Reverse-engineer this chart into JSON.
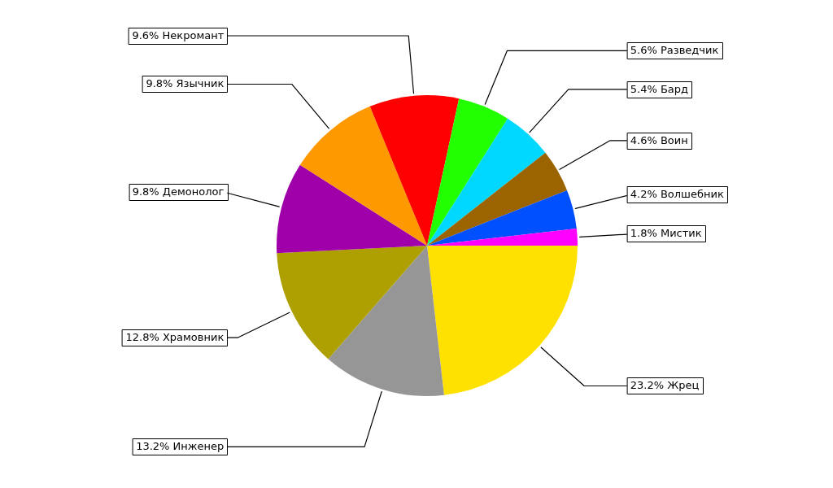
{
  "chart_data": {
    "type": "pie",
    "categories": [
      "Жрец",
      "Инженер",
      "Храмовник",
      "Демонолог",
      "Язычник",
      "Некромант",
      "Разведчик",
      "Бард",
      "Воин",
      "Волшебник",
      "Мистик"
    ],
    "values": [
      23.2,
      13.2,
      12.8,
      9.8,
      9.8,
      9.6,
      5.6,
      5.4,
      4.6,
      4.2,
      1.8
    ],
    "value_labels": [
      "23.2%",
      "13.2%",
      "12.8%",
      "9.8%",
      "9.8%",
      "9.6%",
      "5.6%",
      "5.4%",
      "4.6%",
      "4.2%",
      "1.8%"
    ],
    "colors": [
      "#ffe100",
      "#969696",
      "#ada000",
      "#a000aa",
      "#ff9900",
      "#ff0000",
      "#22ff00",
      "#00d8ff",
      "#9c6400",
      "#0050ff",
      "#ff00ff"
    ],
    "legend": false
  }
}
